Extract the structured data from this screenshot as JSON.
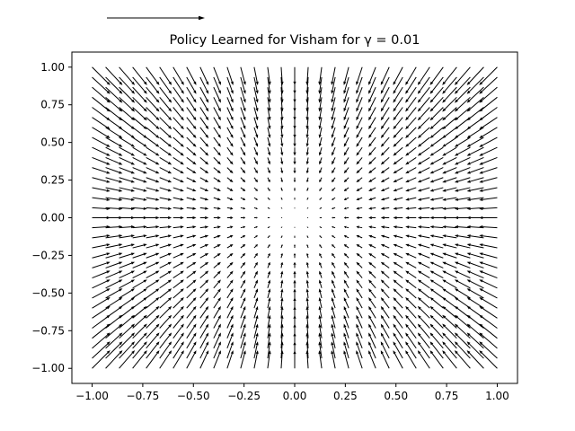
{
  "chart_data": {
    "type": "quiver",
    "title": "Policy Learned for Visham for γ = 0.01",
    "xlabel": "",
    "ylabel": "",
    "xlim": [
      -1.1,
      1.1
    ],
    "ylim": [
      -1.1,
      1.1
    ],
    "x_ticks": [
      "−1.00",
      "−0.75",
      "−0.50",
      "−0.25",
      "0.00",
      "0.25",
      "0.50",
      "0.75",
      "1.00"
    ],
    "y_ticks": [
      "1.00",
      "0.75",
      "0.50",
      "0.25",
      "0.00",
      "−0.25",
      "−0.50",
      "−0.75",
      "−1.00"
    ],
    "grid": false,
    "grid_points_per_axis": 31,
    "grid_range": [
      -1.0,
      1.0
    ],
    "vector_field": "u = -x, v = -y (directed toward origin)",
    "arrow_color": "#000000"
  }
}
